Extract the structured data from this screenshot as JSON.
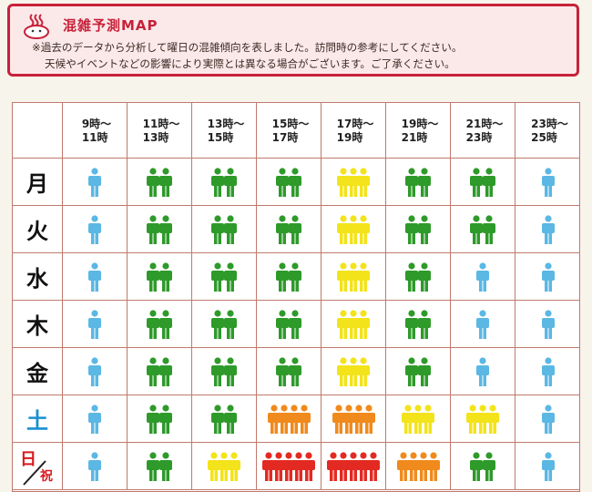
{
  "header": {
    "title": "混雑予測MAP",
    "note_line1": "※過去のデータから分析して曜日の混雑傾向を表しました。訪問時の参考にしてください。",
    "note_line2": "天候やイベントなどの影響により実際とは異なる場合がございます。ご了承ください。",
    "icon": "onsen-mascot-icon"
  },
  "time_slots": [
    "9時～\n11時",
    "11時～\n13時",
    "13時～\n15時",
    "15時～\n17時",
    "17時～\n19時",
    "19時～\n21時",
    "21時～\n23時",
    "23時～\n25時"
  ],
  "days": [
    {
      "label": "月",
      "levels": [
        1,
        2,
        2,
        2,
        3,
        2,
        2,
        1
      ]
    },
    {
      "label": "火",
      "levels": [
        1,
        2,
        2,
        2,
        3,
        2,
        2,
        1
      ]
    },
    {
      "label": "水",
      "levels": [
        1,
        2,
        2,
        2,
        3,
        2,
        1,
        1
      ]
    },
    {
      "label": "木",
      "levels": [
        1,
        2,
        2,
        2,
        3,
        2,
        1,
        1
      ]
    },
    {
      "label": "金",
      "levels": [
        1,
        2,
        2,
        2,
        3,
        2,
        1,
        1
      ]
    },
    {
      "label": "土",
      "levels": [
        1,
        2,
        2,
        4,
        4,
        3,
        3,
        1
      ]
    },
    {
      "label": "日",
      "label2": "祝",
      "levels": [
        1,
        2,
        3,
        5,
        5,
        4,
        2,
        1
      ]
    }
  ],
  "level_legend": {
    "1": {
      "count": 1,
      "color": "#5bb7e3"
    },
    "2": {
      "count": 2,
      "color": "#2e9a2a"
    },
    "3": {
      "count": 3,
      "color": "#f3e31a"
    },
    "4": {
      "count": 4,
      "color": "#f08a1c"
    },
    "5": {
      "count": 5,
      "color": "#e32a22"
    }
  },
  "colors": {
    "accent": "#c8213a",
    "saturday": "#1a8fd0",
    "holiday": "#d8181e"
  }
}
